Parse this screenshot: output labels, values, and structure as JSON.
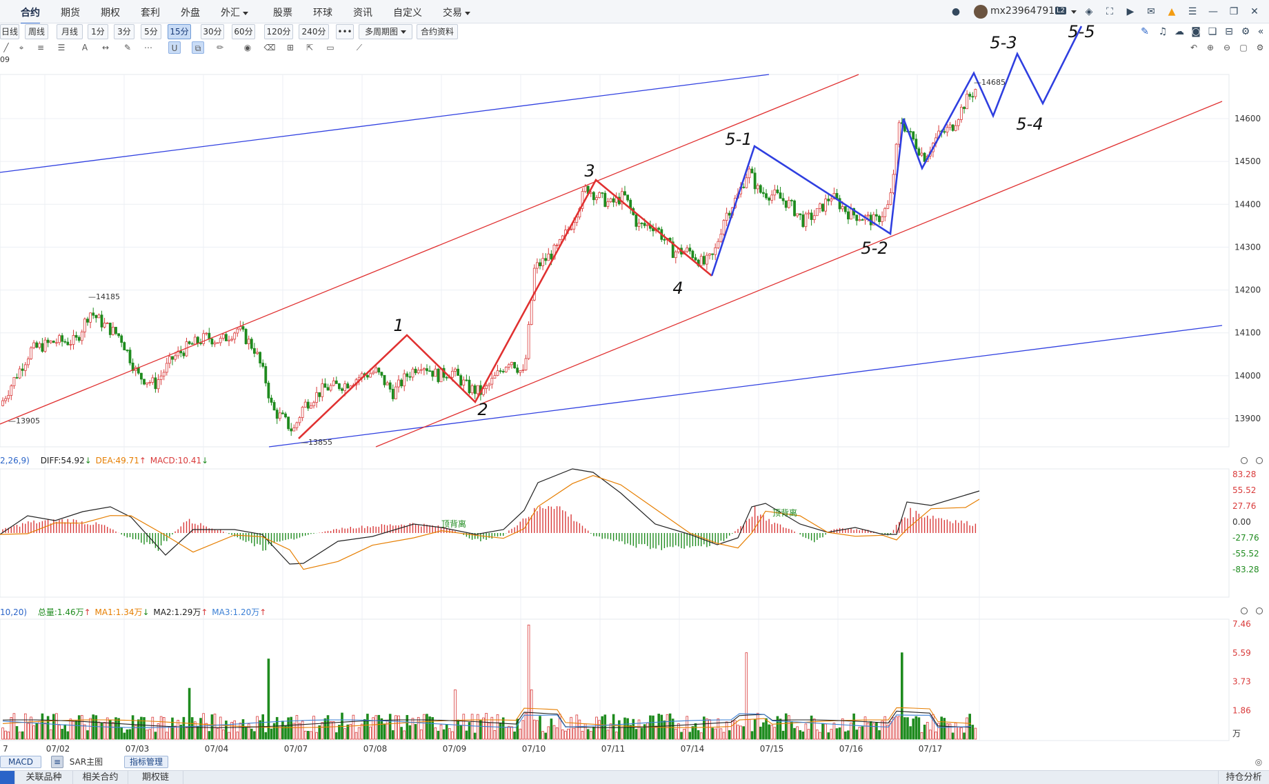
{
  "nav": {
    "items": [
      {
        "label": "合约",
        "active": true
      },
      {
        "label": "期货"
      },
      {
        "label": "期权"
      },
      {
        "label": "套利"
      },
      {
        "label": "外盘"
      },
      {
        "label": "外汇",
        "dropdown": true
      },
      {
        "label": "股票"
      },
      {
        "label": "环球"
      },
      {
        "label": "资讯"
      },
      {
        "label": "自定义"
      },
      {
        "label": "交易",
        "dropdown": true
      }
    ],
    "username": "mx239647912",
    "user_badge": "L2"
  },
  "periods": {
    "buttons": [
      "日线",
      "周线",
      "月线",
      "1分",
      "3分",
      "5分",
      "15分",
      "30分",
      "60分",
      "120分",
      "240分"
    ],
    "active": "15分",
    "more_label": "•••",
    "multi_label": "多周期图",
    "contract_info_label": "合约资料"
  },
  "chart_title_fragment": "09",
  "main_chart": {
    "y_ticks": [
      "14600",
      "14500",
      "14400",
      "14300",
      "14200",
      "14100",
      "14000",
      "13900"
    ],
    "price_labels": {
      "high_left": "14185",
      "low_left": "13905",
      "low_mid": "13855",
      "high_right": "14685"
    },
    "wave_labels": [
      "1",
      "2",
      "3",
      "4",
      "5-1",
      "5-2",
      "5-3",
      "5-4",
      "5-5"
    ]
  },
  "macd": {
    "params": "2,26,9)",
    "diff": "DIFF:54.92",
    "dea": "DEA:49.71",
    "macd": "MACD:10.41",
    "y_ticks": [
      "83.28",
      "55.52",
      "27.76",
      "0.00",
      "-27.76",
      "-55.52",
      "-83.28"
    ],
    "annotations": [
      "顶背离",
      "顶背离"
    ]
  },
  "volume": {
    "params": "10,20)",
    "total": "总量:1.46万",
    "ma1": "MA1:1.34万",
    "ma2": "MA2:1.29万",
    "ma3": "MA3:1.20万",
    "y_ticks": [
      "7.46",
      "5.59",
      "3.73",
      "1.86"
    ],
    "unit": "万"
  },
  "x_dates": [
    "7",
    "07/02",
    "07/03",
    "07/04",
    "07/07",
    "07/08",
    "07/09",
    "07/10",
    "07/11",
    "07/14",
    "07/15",
    "07/16",
    "07/17"
  ],
  "indicator_bar": {
    "macd": "MACD",
    "sar": "SAR主图",
    "manage": "指标管理"
  },
  "bottom_tabs": [
    "关联品种",
    "相关合约",
    "期权链"
  ],
  "bottom_right": "持仓分析",
  "colors": {
    "up": "#d93a3a",
    "down": "#1e8b1e",
    "trend_red": "#e03131",
    "trend_blue": "#2f3fe0",
    "accent": "#2a64c8"
  }
}
